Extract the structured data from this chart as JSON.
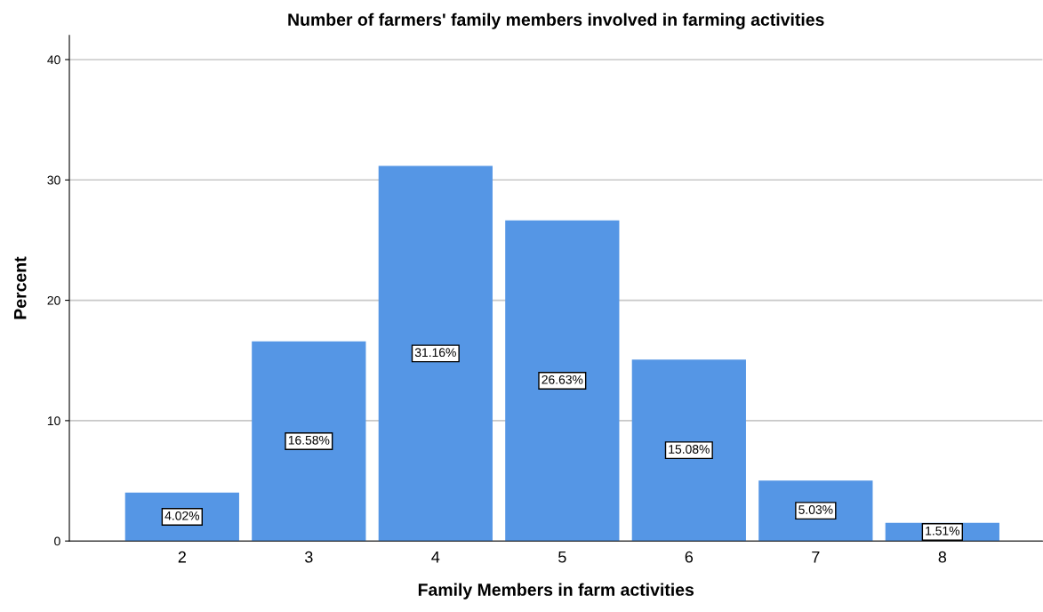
{
  "chart_data": {
    "type": "bar",
    "title": "Number of farmers' family members involved in farming activities",
    "xlabel": "Family Members in farm activities",
    "ylabel": "Percent",
    "categories": [
      "2",
      "3",
      "4",
      "5",
      "6",
      "7",
      "8"
    ],
    "values": [
      4.02,
      16.58,
      31.16,
      26.63,
      15.08,
      5.03,
      1.51
    ],
    "value_labels": [
      "4.02%",
      "16.58%",
      "31.16%",
      "26.63%",
      "15.08%",
      "5.03%",
      "1.51%"
    ],
    "color": "#5596e5",
    "ylim": [
      0,
      42
    ],
    "yticks": [
      0,
      10,
      20,
      30,
      40
    ],
    "grid": "y",
    "legend": false
  }
}
